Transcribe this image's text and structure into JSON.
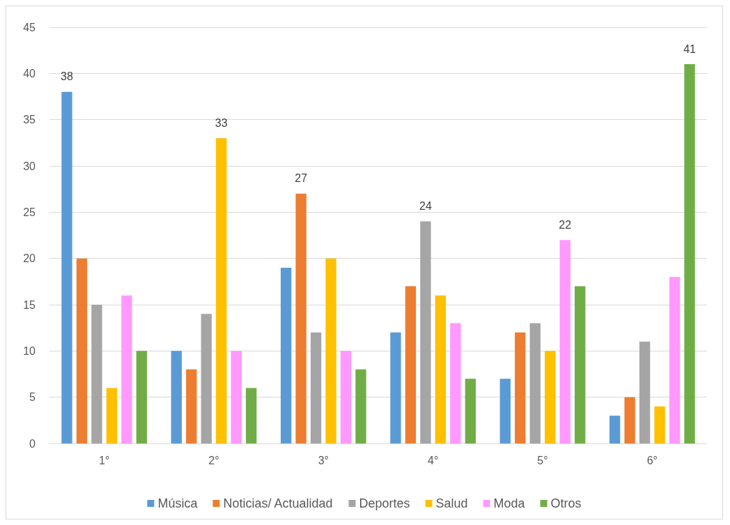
{
  "chart_data": {
    "type": "bar",
    "categories": [
      "1°",
      "2°",
      "3°",
      "4°",
      "5°",
      "6°"
    ],
    "series": [
      {
        "name": "Música",
        "color": "#5b9bd5",
        "values": [
          38,
          10,
          19,
          12,
          7,
          3
        ],
        "value_labels": [
          "38",
          null,
          null,
          null,
          null,
          null
        ]
      },
      {
        "name": "Noticias/ Actualidad",
        "color": "#ed7d31",
        "values": [
          20,
          8,
          27,
          17,
          12,
          5
        ],
        "value_labels": [
          null,
          null,
          "27",
          null,
          null,
          null
        ]
      },
      {
        "name": "Deportes",
        "color": "#a5a5a5",
        "values": [
          15,
          14,
          12,
          24,
          13,
          11
        ],
        "value_labels": [
          null,
          null,
          null,
          "24",
          null,
          null
        ]
      },
      {
        "name": "Salud",
        "color": "#ffc000",
        "values": [
          6,
          33,
          20,
          16,
          10,
          4
        ],
        "value_labels": [
          null,
          "33",
          null,
          null,
          null,
          null
        ]
      },
      {
        "name": "Moda",
        "color": "#ff99ff",
        "values": [
          16,
          10,
          10,
          13,
          22,
          18
        ],
        "value_labels": [
          null,
          null,
          null,
          null,
          "22",
          null
        ]
      },
      {
        "name": "Otros",
        "color": "#70ad47",
        "values": [
          10,
          6,
          8,
          7,
          17,
          41
        ],
        "value_labels": [
          null,
          null,
          null,
          null,
          null,
          "41"
        ]
      }
    ],
    "ylim": [
      0,
      45
    ],
    "yticks": [
      0,
      5,
      10,
      15,
      20,
      25,
      30,
      35,
      40,
      45
    ],
    "grid": "y",
    "legend": "bottom"
  }
}
